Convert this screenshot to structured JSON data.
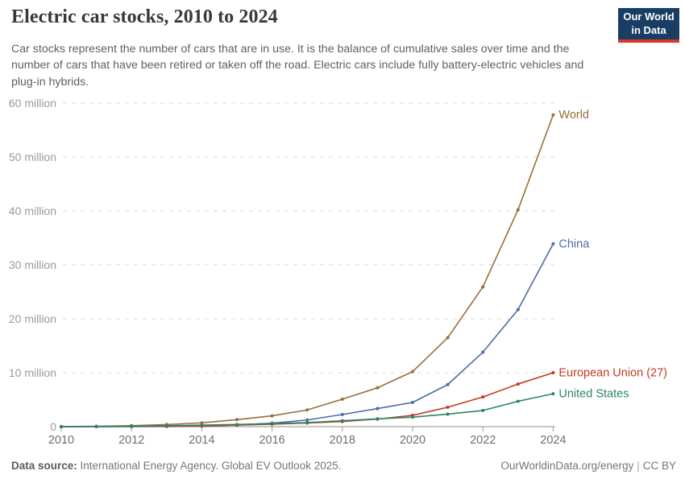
{
  "header": {
    "title": "Electric car stocks, 2010 to 2024",
    "subtitle": "Car stocks represent the number of cars that are in use. It is the balance of cumulative sales over time and the number of cars that have been retired or taken off the road. Electric cars include fully battery-electric vehicles and plug-in hybrids.",
    "logo": {
      "line1": "Our World",
      "line2": "in Data",
      "bg_color": "#1a3d63",
      "accent_color": "#d6382c"
    }
  },
  "chart_data": {
    "type": "line",
    "title": "Electric car stocks, 2010 to 2024",
    "xlabel": "",
    "ylabel": "",
    "unit": "million cars",
    "grid": "dashed-horizontal",
    "legend_position": "labels-at-line-ends",
    "x": [
      2010,
      2011,
      2012,
      2013,
      2014,
      2015,
      2016,
      2017,
      2018,
      2019,
      2020,
      2021,
      2022,
      2023,
      2024
    ],
    "x_ticks": [
      2010,
      2012,
      2014,
      2016,
      2018,
      2020,
      2022,
      2024
    ],
    "xlim": [
      2010,
      2024
    ],
    "ylim": [
      0,
      60
    ],
    "y_tick_step": 10,
    "y_tick_suffix": " million",
    "y_zero_label": "0",
    "series": [
      {
        "name": "World",
        "color": "#996d39",
        "values": [
          0.02,
          0.06,
          0.18,
          0.39,
          0.71,
          1.3,
          2.0,
          3.1,
          5.1,
          7.2,
          10.2,
          16.5,
          25.9,
          40.2,
          57.8
        ]
      },
      {
        "name": "China",
        "color": "#4c6ca8",
        "values": [
          0.005,
          0.01,
          0.02,
          0.03,
          0.09,
          0.31,
          0.65,
          1.23,
          2.26,
          3.35,
          4.5,
          7.8,
          13.8,
          21.7,
          33.9
        ]
      },
      {
        "name": "European Union (27)",
        "color": "#c03a22",
        "values": [
          0.003,
          0.012,
          0.035,
          0.08,
          0.15,
          0.28,
          0.45,
          0.67,
          0.95,
          1.4,
          2.1,
          3.6,
          5.5,
          7.9,
          10.0
        ]
      },
      {
        "name": "United States",
        "color": "#2c8465",
        "values": [
          0.004,
          0.02,
          0.07,
          0.17,
          0.29,
          0.4,
          0.56,
          0.76,
          1.1,
          1.45,
          1.77,
          2.32,
          3.0,
          4.7,
          6.1
        ]
      }
    ]
  },
  "footer": {
    "source_label": "Data source:",
    "source_text": " International Energy Agency. Global EV Outlook 2025.",
    "site_link": "OurWorldinData.org/energy",
    "separator": "|",
    "license": "CC BY"
  }
}
